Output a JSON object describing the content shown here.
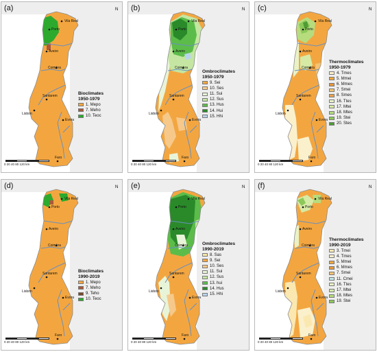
{
  "panels": [
    {
      "label": "(a)",
      "legend_title": "Bioclimates",
      "legend_period": "1950-1979",
      "legend_items": [
        {
          "text": "1. Mepo",
          "color": "#f3a640"
        },
        {
          "text": "7. Meho",
          "color": "#a85a3a"
        },
        {
          "text": "10. Teoc",
          "color": "#2daa2d"
        }
      ]
    },
    {
      "label": "(b)",
      "legend_title": "Ombroclimates",
      "legend_period": "1950-1979",
      "legend_items": [
        {
          "text": "9. Sei",
          "color": "#f3a640"
        },
        {
          "text": "10. Ses",
          "color": "#f6c98a"
        },
        {
          "text": "11. Sui",
          "color": "#e8f4d8"
        },
        {
          "text": "12. Sus",
          "color": "#c4e6a2"
        },
        {
          "text": "13. Hus",
          "color": "#5cbc4a"
        },
        {
          "text": "14. Hui",
          "color": "#2a8a2a"
        },
        {
          "text": "15. Hhi",
          "color": "#b8d4ec"
        }
      ]
    },
    {
      "label": "(c)",
      "legend_title": "Thermoclimates",
      "legend_period": "1950-1979",
      "legend_items": [
        {
          "text": "4. Tmes",
          "color": "#fbf0cc"
        },
        {
          "text": "5. Mmei",
          "color": "#f3a640"
        },
        {
          "text": "6. Mmes",
          "color": "#e8963a"
        },
        {
          "text": "7. Smei",
          "color": "#f6c272"
        },
        {
          "text": "8. Smes",
          "color": "#eaa24c"
        },
        {
          "text": "16. Ttes",
          "color": "#e8f2c6"
        },
        {
          "text": "17. Mtei",
          "color": "#d6eaa6"
        },
        {
          "text": "18. Mtes",
          "color": "#b6dc7e"
        },
        {
          "text": "19. Stei",
          "color": "#8cc85a"
        },
        {
          "text": "20. Stes",
          "color": "#4e9c34"
        }
      ]
    },
    {
      "label": "(d)",
      "legend_title": "Bioclimates",
      "legend_period": "1990-2019",
      "legend_items": [
        {
          "text": "1. Mepo",
          "color": "#f3a640"
        },
        {
          "text": "7. Meho",
          "color": "#a85a3a"
        },
        {
          "text": "9. Teho",
          "color": "#7a4a2a"
        },
        {
          "text": "10. Teoc",
          "color": "#2daa2d"
        }
      ]
    },
    {
      "label": "(e)",
      "legend_title": "Ombroclimates",
      "legend_period": "1990-2019",
      "legend_items": [
        {
          "text": "8. Sas",
          "color": "#fae6a8"
        },
        {
          "text": "9. Sei",
          "color": "#f3a640"
        },
        {
          "text": "10. Ses",
          "color": "#f6c98a"
        },
        {
          "text": "11. Sui",
          "color": "#e8f4d8"
        },
        {
          "text": "12. Sus",
          "color": "#c4e6a2"
        },
        {
          "text": "13. hui",
          "color": "#5cbc4a"
        },
        {
          "text": "14. Hus",
          "color": "#2a8a2a"
        },
        {
          "text": "15. Hhi",
          "color": "#b8d4ec"
        }
      ]
    },
    {
      "label": "(f)",
      "legend_title": "Thermoclimates",
      "legend_period": "1990-2019",
      "legend_items": [
        {
          "text": "3. Tmei",
          "color": "#fbe8b0"
        },
        {
          "text": "4. Tmes",
          "color": "#fbf0cc"
        },
        {
          "text": "5. Mmei",
          "color": "#f3a640"
        },
        {
          "text": "6. Mmes",
          "color": "#e8963a"
        },
        {
          "text": "7. Smei",
          "color": "#f6c272"
        },
        {
          "text": "11. Cmei",
          "color": "#bfe4e4"
        },
        {
          "text": "16. Ttes",
          "color": "#e8f2c6"
        },
        {
          "text": "17. Mtei",
          "color": "#d6eaa6"
        },
        {
          "text": "18. Mtes",
          "color": "#b6dc7e"
        },
        {
          "text": "19. Stei",
          "color": "#8cc85a"
        }
      ]
    }
  ],
  "cities": {
    "vila_real": "Vila Real",
    "porto": "Porto",
    "aveiro": "Aveiro",
    "coimbra": "Coimbra",
    "santarem": "Santarem",
    "lisbon": "Lisbon",
    "evora": "Evora",
    "faro": "Faro"
  },
  "scale": {
    "ticks": "0  20 40    80    120",
    "unit": "km"
  },
  "north_label": "N",
  "colors": {
    "base": "#f3a640",
    "outline": "#8a8a8a",
    "river": "#6a8fc0",
    "spain": "#eeeeee",
    "sea": "#ffffff"
  }
}
